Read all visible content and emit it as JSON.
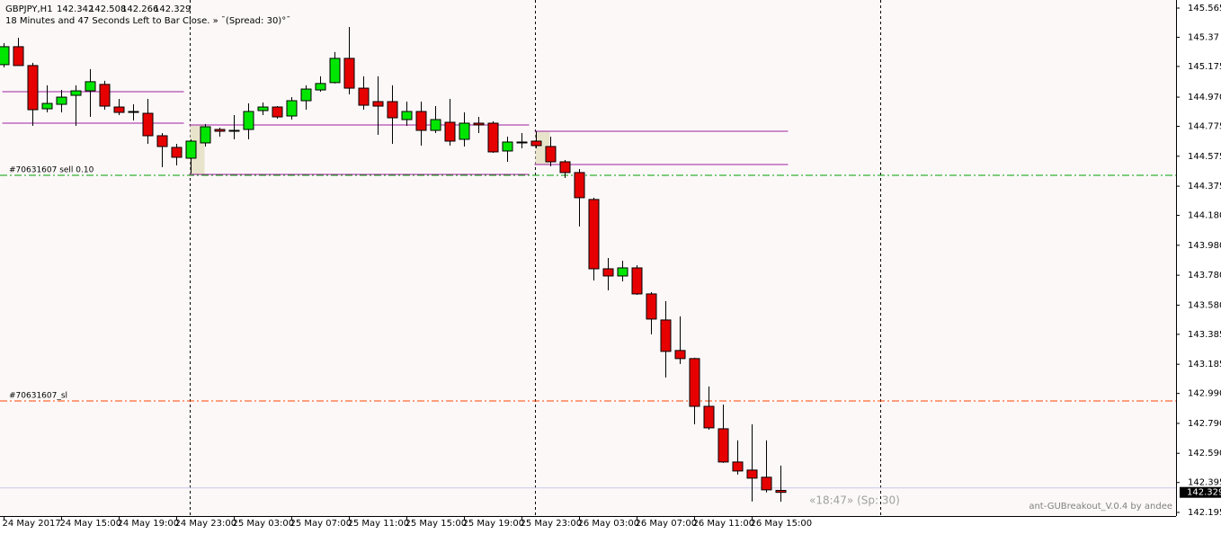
{
  "chart_data": {
    "type": "candlestick",
    "title": "GBPJPY,H1",
    "status": "18 Minutes and 47 Seconds Left to Bar Close. » ¯(Spread: 30)°¯",
    "timer": "«18:47» (Sp: 30)",
    "indicator_name": "ant-GUBreakout_V.0.4 by andee",
    "categories": [
      "24 May 2017",
      null,
      null,
      null,
      "24 May 15:00",
      null,
      null,
      null,
      "24 May 19:00",
      null,
      null,
      null,
      "24 May 23:00",
      null,
      null,
      null,
      "25 May 03:00",
      null,
      null,
      null,
      "25 May 07:00",
      null,
      null,
      null,
      "25 May 11:00",
      null,
      null,
      null,
      "25 May 15:00",
      null,
      null,
      null,
      "25 May 19:00",
      null,
      null,
      null,
      "25 May 23:00",
      null,
      null,
      null,
      "26 May 03:00",
      null,
      null,
      null,
      "26 May 07:00",
      null,
      null,
      null,
      "26 May 11:00",
      null,
      null,
      null,
      "26 May 15:00",
      null,
      null
    ],
    "open": [
      145.187,
      145.307,
      145.181,
      144.892,
      144.922,
      144.982,
      145.012,
      145.055,
      144.904,
      144.874,
      144.862,
      144.712,
      144.634,
      144.562,
      144.664,
      144.754,
      144.748,
      144.754,
      144.88,
      144.904,
      144.844,
      144.946,
      145.018,
      145.067,
      145.229,
      145.03,
      144.94,
      144.94,
      144.82,
      144.874,
      144.748,
      144.802,
      144.688,
      144.796,
      144.796,
      144.61,
      144.67,
      144.676,
      144.64,
      144.538,
      144.466,
      144.286,
      143.823,
      143.775,
      143.829,
      143.655,
      143.481,
      143.277,
      143.223,
      142.904,
      142.754,
      142.532,
      142.478,
      142.43,
      142.342
    ],
    "high": [
      145.331,
      145.367,
      145.199,
      145.049,
      145.018,
      145.049,
      145.157,
      145.079,
      144.958,
      144.922,
      144.958,
      144.73,
      144.658,
      144.688,
      144.79,
      144.766,
      144.85,
      144.928,
      144.934,
      144.91,
      144.97,
      145.049,
      145.109,
      145.271,
      145.439,
      145.109,
      145.109,
      145.049,
      144.94,
      144.94,
      144.91,
      144.958,
      144.868,
      144.838,
      144.808,
      144.706,
      144.73,
      144.742,
      144.706,
      144.55,
      144.49,
      144.298,
      143.895,
      143.877,
      143.847,
      143.667,
      143.607,
      143.505,
      143.229,
      143.037,
      142.916,
      142.676,
      142.784,
      142.676,
      142.508
    ],
    "low": [
      145.169,
      145.181,
      144.778,
      144.868,
      144.868,
      144.778,
      144.838,
      144.886,
      144.85,
      144.814,
      144.658,
      144.502,
      144.514,
      144.46,
      144.64,
      144.706,
      144.688,
      144.688,
      144.85,
      144.826,
      144.82,
      144.886,
      145.006,
      145.061,
      144.988,
      144.886,
      144.718,
      144.658,
      144.778,
      144.646,
      144.73,
      144.646,
      144.64,
      144.73,
      144.598,
      144.538,
      144.628,
      144.628,
      144.508,
      144.43,
      144.106,
      143.745,
      143.679,
      143.739,
      143.649,
      143.385,
      143.097,
      143.187,
      142.784,
      142.748,
      142.526,
      142.448,
      142.268,
      142.329,
      142.266
    ],
    "close": [
      145.307,
      145.181,
      144.886,
      144.928,
      144.97,
      145.012,
      145.073,
      144.91,
      144.868,
      144.868,
      144.712,
      144.64,
      144.568,
      144.676,
      144.772,
      144.742,
      144.742,
      144.874,
      144.904,
      144.838,
      144.946,
      145.024,
      145.061,
      145.229,
      145.03,
      144.916,
      144.91,
      144.832,
      144.874,
      144.748,
      144.82,
      144.676,
      144.796,
      144.784,
      144.604,
      144.67,
      144.664,
      144.646,
      144.538,
      144.466,
      144.298,
      143.823,
      143.775,
      143.829,
      143.655,
      143.487,
      143.271,
      143.223,
      142.904,
      142.76,
      142.532,
      142.472,
      142.424,
      142.346,
      142.329
    ],
    "up_color": "#00e600",
    "down_color": "#e60000",
    "ranges": [
      {
        "high": 145.006,
        "low": 144.796
      },
      {
        "high": 144.784,
        "low": 144.454
      },
      {
        "high": 144.742,
        "low": 144.52
      }
    ],
    "range_color": "#a020a0",
    "order_line": {
      "label": "#70631607 sell 0.10",
      "value": 144.448,
      "color": "#00a000"
    },
    "sl_line": {
      "label": "#70631607_sl",
      "value": 142.94,
      "color": "#ff4500"
    },
    "ask_line": {
      "value": 142.359,
      "color": "#c8c8e8"
    },
    "ylim": [
      142.171,
      145.619
    ],
    "yticks": [
      145.565,
      145.37,
      145.175,
      {
        "value": 144.97,
        "label": "144.970"
      },
      144.775,
      144.575,
      144.375,
      {
        "value": 144.18,
        "label": "144.180"
      },
      {
        "value": 143.98,
        "label": "143.980"
      },
      {
        "value": 143.78,
        "label": "143.780"
      },
      {
        "value": 143.58,
        "label": "143.580"
      },
      143.385,
      143.185,
      {
        "value": 142.99,
        "label": "142.990"
      },
      {
        "value": 142.79,
        "label": "142.790"
      },
      {
        "value": 142.59,
        "label": "142.590"
      },
      142.395,
      142.195
    ]
  }
}
